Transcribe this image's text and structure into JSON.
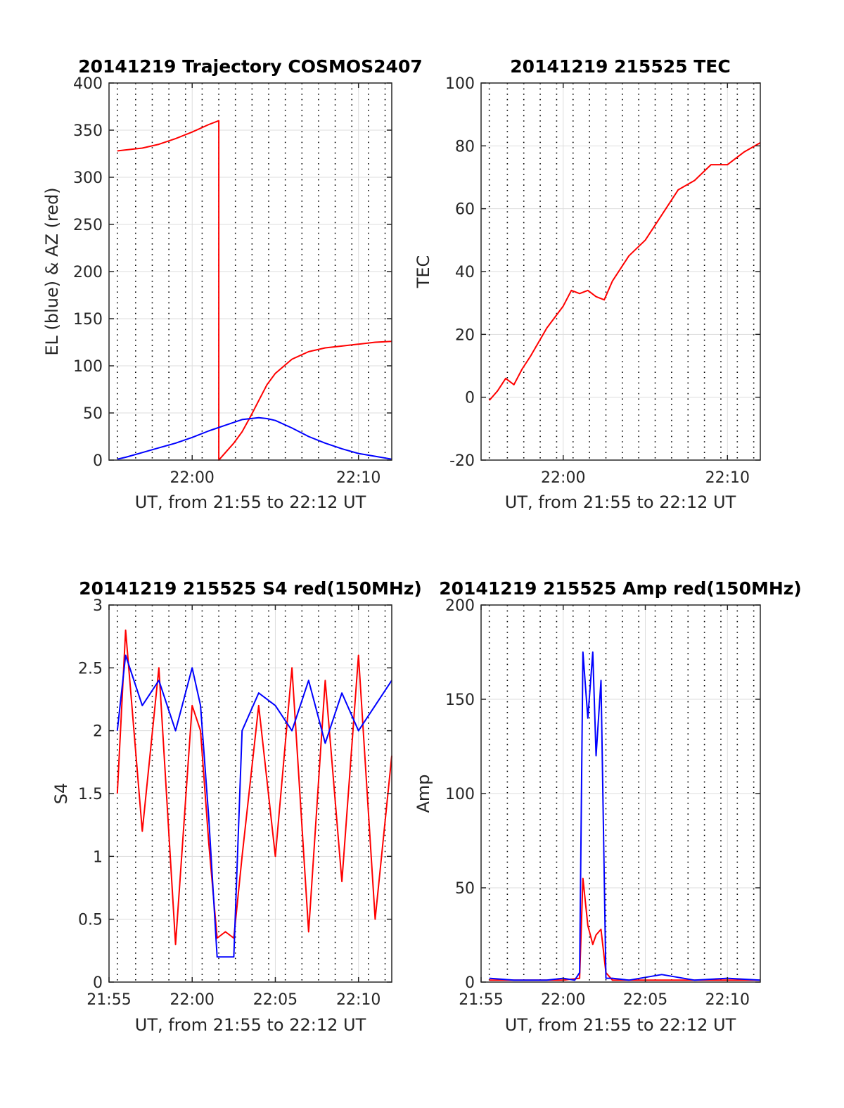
{
  "colors": {
    "az": "#ff0000",
    "el": "#0000ff",
    "tec": "#ff0000",
    "red": "#ff0000",
    "blue": "#0000ff",
    "grid": "#dddddd",
    "vline": "#000000"
  },
  "chart_data": [
    {
      "id": "trajectory",
      "type": "line",
      "title": "20141219 Trajectory COSMOS2407",
      "xlabel": "UT, from 21:55 to 22:12 UT",
      "ylabel": "EL (blue) & AZ (red)",
      "xlim": [
        "21:55",
        "22:12"
      ],
      "ylim": [
        0,
        400
      ],
      "xticks": [
        "22:00",
        "22:10"
      ],
      "yticks": [
        0,
        50,
        100,
        150,
        200,
        250,
        300,
        350,
        400
      ],
      "grid": true,
      "dotted_vlines": true,
      "series": [
        {
          "color": "az",
          "x": [
            "21:55.5",
            "21:56",
            "21:57",
            "21:58",
            "21:59",
            "22:00",
            "22:01",
            "22:01.6",
            "22:01.6",
            "22:02",
            "22:02.5",
            "22:03",
            "22:03.5",
            "22:04",
            "22:04.5",
            "22:05",
            "22:06",
            "22:07",
            "22:08",
            "22:09",
            "22:10",
            "22:11",
            "22:12"
          ],
          "y": [
            328,
            329,
            331,
            335,
            341,
            348,
            356,
            360,
            0,
            8,
            18,
            30,
            46,
            63,
            80,
            92,
            107,
            115,
            119,
            121,
            123,
            125,
            126
          ]
        },
        {
          "color": "el",
          "x": [
            "21:55.5",
            "21:56",
            "21:57",
            "21:58",
            "21:59",
            "22:00",
            "22:01",
            "22:02",
            "22:03",
            "22:04",
            "22:04.5",
            "22:05",
            "22:06",
            "22:07",
            "22:08",
            "22:09",
            "22:10",
            "22:11",
            "22:12"
          ],
          "y": [
            1,
            3,
            8,
            13,
            18,
            24,
            31,
            37,
            43,
            45,
            44,
            42,
            34,
            25,
            18,
            12,
            7,
            4,
            1
          ]
        }
      ]
    },
    {
      "id": "tec",
      "type": "line",
      "title": "20141219 215525 TEC",
      "xlabel": "UT, from 21:55 to 22:12 UT",
      "ylabel": "TEC",
      "xlim": [
        "21:55",
        "22:12"
      ],
      "ylim": [
        -20,
        100
      ],
      "xticks": [
        "22:00",
        "22:10"
      ],
      "yticks": [
        -20,
        0,
        20,
        40,
        60,
        80,
        100
      ],
      "grid": true,
      "dotted_vlines": true,
      "series": [
        {
          "color": "tec",
          "x": [
            "21:55.5",
            "21:56",
            "21:56.5",
            "21:57",
            "21:57.5",
            "21:58",
            "21:59",
            "22:00",
            "22:00.5",
            "22:01",
            "22:01.5",
            "22:02",
            "22:02.5",
            "22:03",
            "22:04",
            "22:05",
            "22:06",
            "22:06.5",
            "22:07",
            "22:08",
            "22:09",
            "22:10",
            "22:11",
            "22:12"
          ],
          "y": [
            -1,
            2,
            6,
            4,
            9,
            13,
            22,
            29,
            34,
            33,
            34,
            32,
            31,
            37,
            45,
            50,
            58,
            62,
            66,
            69,
            74,
            74,
            78,
            81
          ]
        }
      ]
    },
    {
      "id": "s4",
      "type": "line",
      "title": "20141219 215525 S4 red(150MHz)",
      "xlabel": "UT, from 21:55 to 22:12 UT",
      "ylabel": "S4",
      "xlim": [
        "21:55",
        "22:12"
      ],
      "ylim": [
        0,
        3
      ],
      "xticks": [
        "21:55",
        "22:00",
        "22:05",
        "22:10"
      ],
      "yticks": [
        0,
        0.5,
        1,
        1.5,
        2,
        2.5,
        3
      ],
      "grid": true,
      "dotted_vlines": true,
      "series": [
        {
          "color": "red",
          "x": [
            "21:55.5",
            "21:56",
            "21:57",
            "21:58",
            "21:59",
            "22:00",
            "22:00.5",
            "22:01",
            "22:01.5",
            "22:02",
            "22:02.5",
            "22:03",
            "22:04",
            "22:05",
            "22:06",
            "22:07",
            "22:08",
            "22:09",
            "22:10",
            "22:11",
            "22:12"
          ],
          "y": [
            1.5,
            2.8,
            1.2,
            2.5,
            0.3,
            2.2,
            2.0,
            1.1,
            0.35,
            0.4,
            0.35,
            1.0,
            2.2,
            1.0,
            2.5,
            0.4,
            2.4,
            0.8,
            2.6,
            0.5,
            1.8
          ]
        },
        {
          "color": "blue",
          "x": [
            "21:55.5",
            "21:56",
            "21:57",
            "21:58",
            "21:59",
            "22:00",
            "22:00.5",
            "22:01",
            "22:01.5",
            "22:02",
            "22:02.5",
            "22:03",
            "22:04",
            "22:05",
            "22:06",
            "22:07",
            "22:08",
            "22:09",
            "22:10",
            "22:11",
            "22:12"
          ],
          "y": [
            2.0,
            2.6,
            2.2,
            2.4,
            2.0,
            2.5,
            2.2,
            1.3,
            0.2,
            0.2,
            0.2,
            2.0,
            2.3,
            2.2,
            2.0,
            2.4,
            1.9,
            2.3,
            2.0,
            2.2,
            2.4
          ]
        }
      ]
    },
    {
      "id": "amp",
      "type": "line",
      "title": "20141219 215525 Amp red(150MHz)",
      "xlabel": "UT, from 21:55 to 22:12 UT",
      "ylabel": "Amp",
      "xlim": [
        "21:55",
        "22:12"
      ],
      "ylim": [
        0,
        200
      ],
      "xticks": [
        "21:55",
        "22:00",
        "22:05",
        "22:10"
      ],
      "yticks": [
        0,
        50,
        100,
        150,
        200
      ],
      "grid": true,
      "dotted_vlines": true,
      "series": [
        {
          "color": "red",
          "x": [
            "21:55.5",
            "21:58",
            "22:00",
            "22:01",
            "22:01.2",
            "22:01.5",
            "22:01.8",
            "22:02",
            "22:02.3",
            "22:02.6",
            "22:03",
            "22:06",
            "22:09",
            "22:12"
          ],
          "y": [
            1,
            1,
            1,
            2,
            55,
            30,
            20,
            25,
            28,
            5,
            1,
            1,
            1,
            1
          ]
        },
        {
          "color": "blue",
          "x": [
            "21:55.5",
            "21:57",
            "21:59",
            "22:00",
            "22:00.7",
            "22:01",
            "22:01.2",
            "22:01.5",
            "22:01.8",
            "22:02",
            "22:02.3",
            "22:02.6",
            "22:03",
            "22:04",
            "22:06",
            "22:08",
            "22:10",
            "22:12"
          ],
          "y": [
            2,
            1,
            1,
            2,
            1,
            5,
            175,
            140,
            175,
            120,
            160,
            2,
            2,
            1,
            4,
            1,
            2,
            1
          ]
        }
      ]
    }
  ]
}
